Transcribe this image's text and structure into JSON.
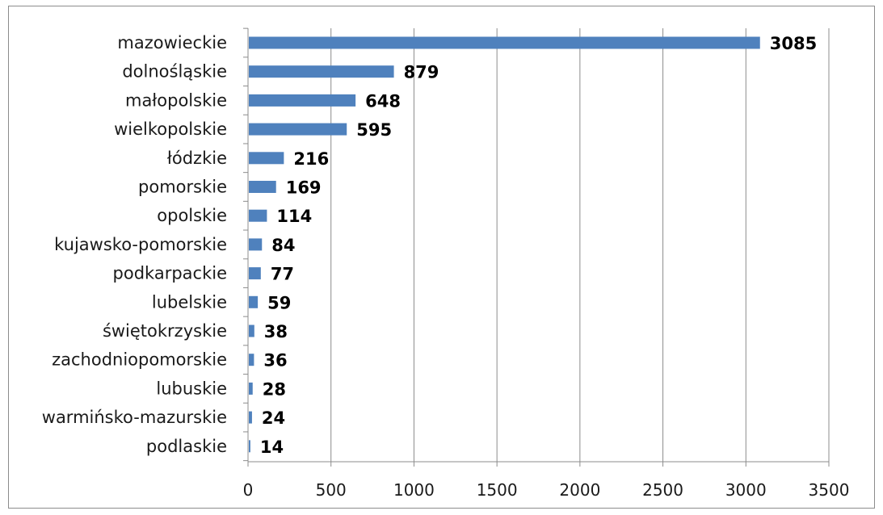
{
  "chart_data": {
    "type": "bar",
    "orientation": "horizontal",
    "title": "",
    "xlabel": "",
    "ylabel": "",
    "categories": [
      "mazowieckie",
      "dolnośląskie",
      "małopolskie",
      "wielkopolskie",
      "łódzkie",
      "pomorskie",
      "opolskie",
      "kujawsko-pomorskie",
      "podkarpackie",
      "lubelskie",
      "świętokrzyskie",
      "zachodniopomorskie",
      "lubuskie",
      "warmińsko-mazurskie",
      "podlaskie"
    ],
    "values": [
      3085,
      879,
      648,
      595,
      216,
      169,
      114,
      84,
      77,
      59,
      38,
      36,
      28,
      24,
      14
    ],
    "xlim": [
      0,
      3500
    ],
    "xticks": [
      0,
      500,
      1000,
      1500,
      2000,
      2500,
      3000,
      3500
    ],
    "grid": true,
    "legend": "none",
    "data_labels": true,
    "bar_color": "#4f81bd",
    "grid_color": "#8c8c8c"
  }
}
